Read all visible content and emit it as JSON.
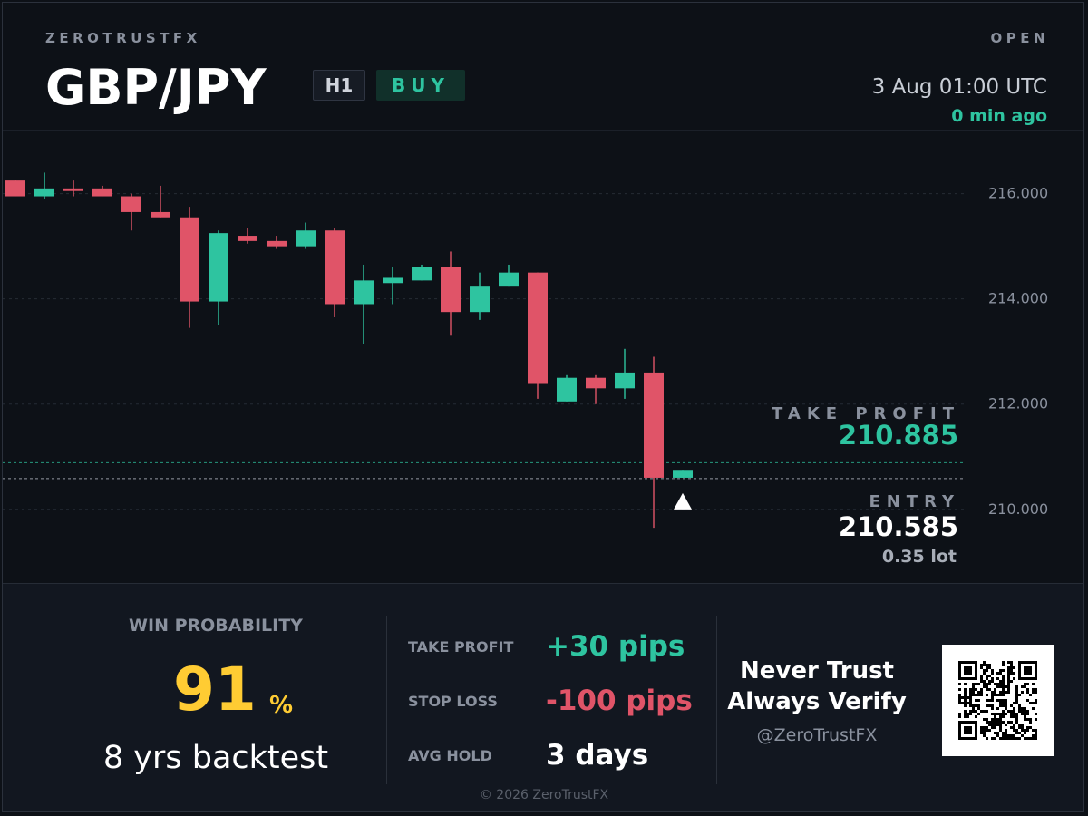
{
  "header": {
    "brand": "ZEROTRUSTFX",
    "status": "OPEN",
    "pair": "GBP/JPY",
    "timeframe": "H1",
    "side": "BUY",
    "timestamp": "3 Aug 01:00  UTC",
    "age": "0 min ago"
  },
  "chart_data": {
    "type": "candlestick",
    "y_ticks": [
      "216.000",
      "214.000",
      "212.000",
      "210.000"
    ],
    "ylim": [
      208.6,
      217.2
    ],
    "candles": [
      {
        "open": 216.25,
        "high": 216.25,
        "low": 215.95,
        "close": 215.95
      },
      {
        "open": 215.95,
        "high": 216.4,
        "low": 215.9,
        "close": 216.1
      },
      {
        "open": 216.1,
        "high": 216.25,
        "low": 215.95,
        "close": 216.05
      },
      {
        "open": 216.1,
        "high": 216.15,
        "low": 215.95,
        "close": 215.95
      },
      {
        "open": 215.95,
        "high": 216.0,
        "low": 215.3,
        "close": 215.65
      },
      {
        "open": 215.65,
        "high": 216.15,
        "low": 215.55,
        "close": 215.55
      },
      {
        "open": 215.55,
        "high": 215.75,
        "low": 213.45,
        "close": 213.95
      },
      {
        "open": 213.95,
        "high": 215.3,
        "low": 213.5,
        "close": 215.25
      },
      {
        "open": 215.2,
        "high": 215.35,
        "low": 215.05,
        "close": 215.1
      },
      {
        "open": 215.1,
        "high": 215.2,
        "low": 214.95,
        "close": 215.0
      },
      {
        "open": 215.0,
        "high": 215.45,
        "low": 214.95,
        "close": 215.3
      },
      {
        "open": 215.3,
        "high": 215.35,
        "low": 213.65,
        "close": 213.9
      },
      {
        "open": 213.9,
        "high": 214.65,
        "low": 213.15,
        "close": 214.35
      },
      {
        "open": 214.3,
        "high": 214.6,
        "low": 213.9,
        "close": 214.4
      },
      {
        "open": 214.35,
        "high": 214.65,
        "low": 214.35,
        "close": 214.6
      },
      {
        "open": 214.6,
        "high": 214.9,
        "low": 213.3,
        "close": 213.75
      },
      {
        "open": 213.75,
        "high": 214.5,
        "low": 213.6,
        "close": 214.25
      },
      {
        "open": 214.25,
        "high": 214.65,
        "low": 214.25,
        "close": 214.5
      },
      {
        "open": 214.5,
        "high": 214.5,
        "low": 212.1,
        "close": 212.4
      },
      {
        "open": 212.05,
        "high": 212.55,
        "low": 212.05,
        "close": 212.5
      },
      {
        "open": 212.5,
        "high": 212.55,
        "low": 212.0,
        "close": 212.3
      },
      {
        "open": 212.3,
        "high": 213.05,
        "low": 212.1,
        "close": 212.6
      },
      {
        "open": 212.6,
        "high": 212.9,
        "low": 209.65,
        "close": 210.6
      },
      {
        "open": 210.6,
        "high": 210.75,
        "low": 210.6,
        "close": 210.75
      }
    ],
    "take_profit": 210.885,
    "entry": 210.585,
    "colors": {
      "up": "#2ec4a0",
      "down": "#e05468",
      "grid": "#252b35",
      "axis_text": "#8a919e"
    }
  },
  "levels": {
    "take_profit_label": "TAKE PROFIT",
    "take_profit_price": "210.885",
    "entry_label": "ENTRY",
    "entry_price": "210.585",
    "lot": "0.35 lot"
  },
  "stats": {
    "win_label": "WIN PROBABILITY",
    "win_value": "91",
    "win_unit": "%",
    "backtest": "8 yrs backtest",
    "take_profit_label": "TAKE PROFIT",
    "take_profit_value": "+30 pips",
    "stop_loss_label": "STOP LOSS",
    "stop_loss_value": "-100 pips",
    "avg_hold_label": "AVG HOLD",
    "avg_hold_value": "3 days"
  },
  "motto": {
    "line1": "Never Trust",
    "line2": "Always Verify",
    "handle": "@ZeroTrustFX"
  },
  "copyright": "© 2026 ZeroTrustFX"
}
